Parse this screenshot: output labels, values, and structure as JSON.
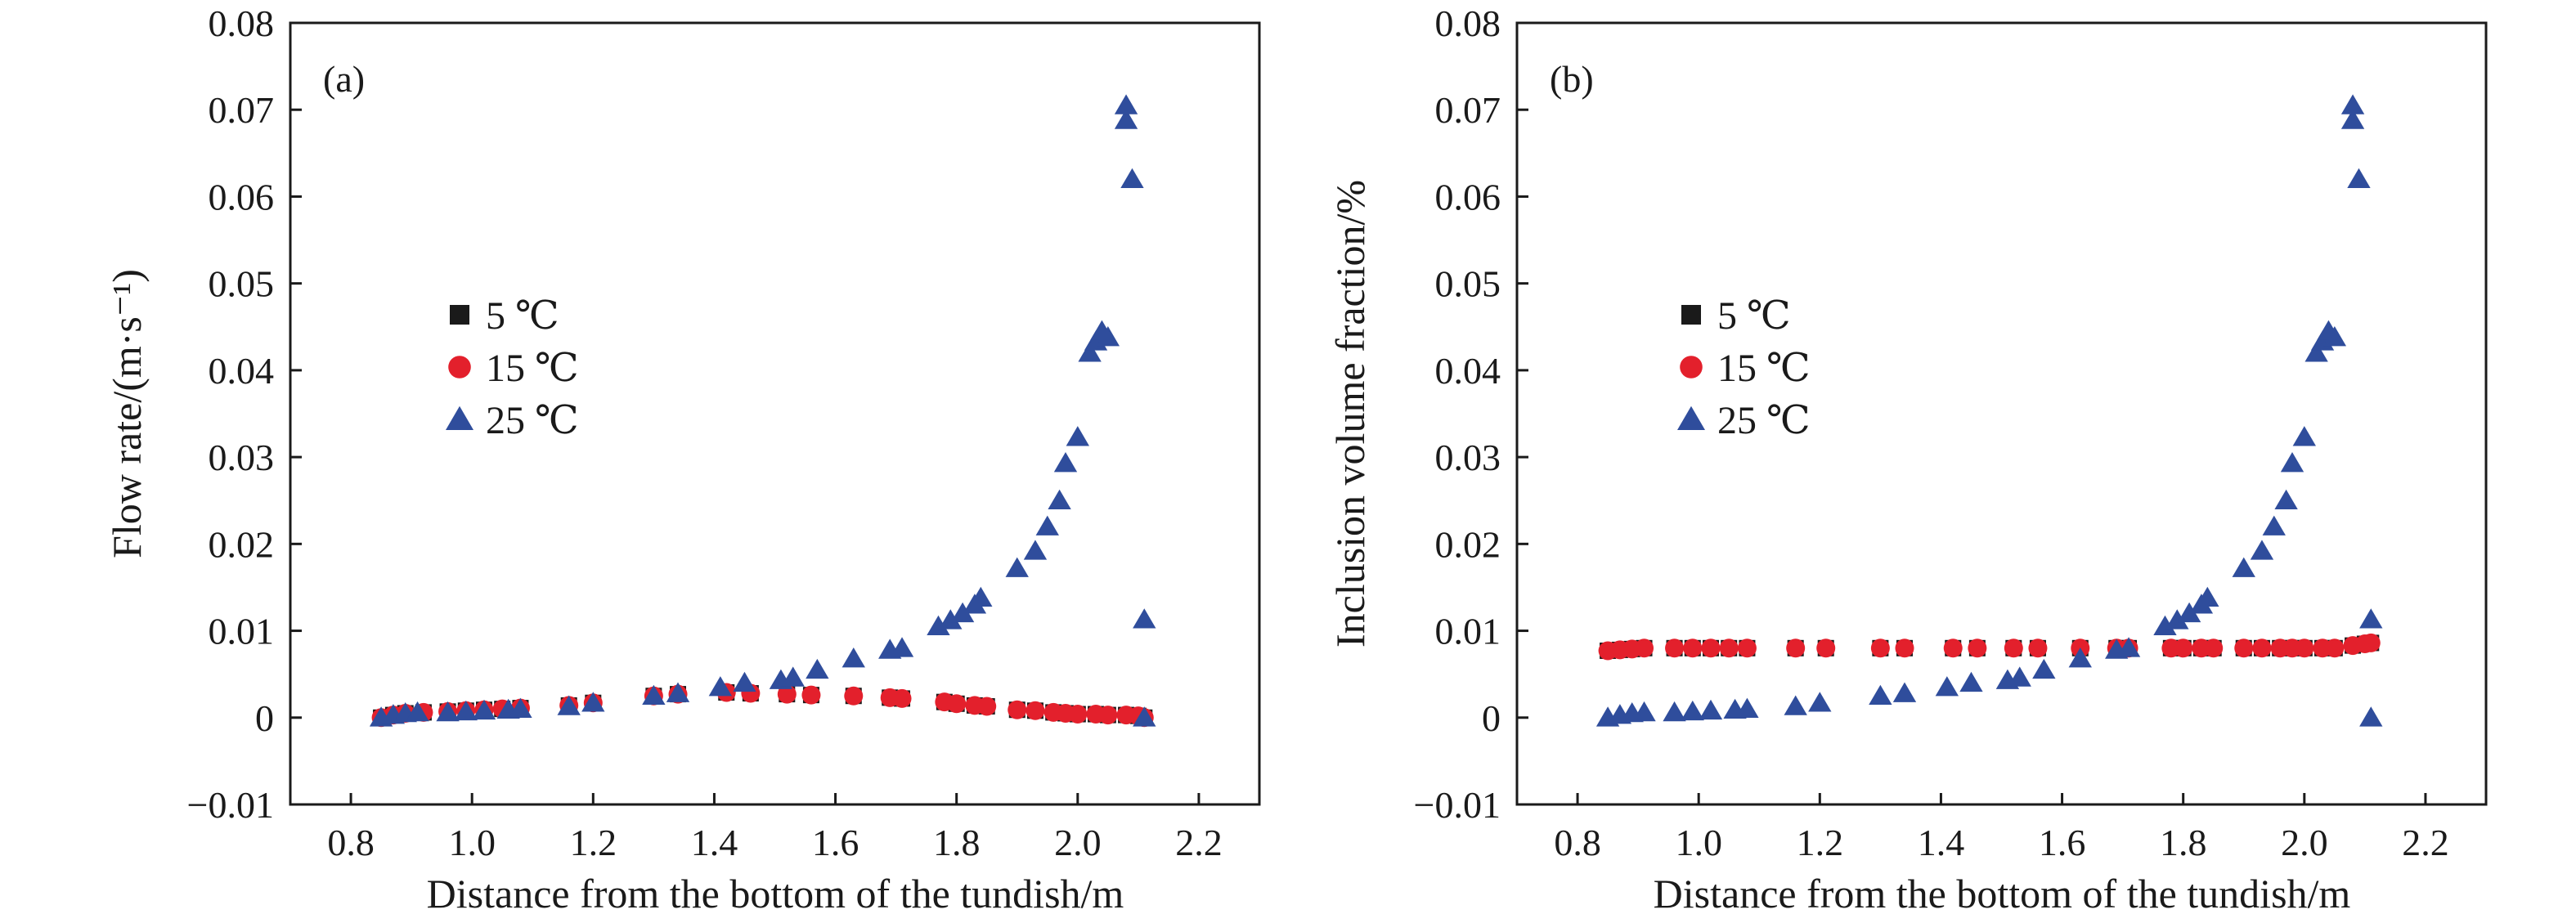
{
  "chart_data": [
    {
      "type": "scatter",
      "panel_label": "(a)",
      "xlabel": "Distance from the bottom of the tundish/m",
      "ylabel": "Flow rate/(m·s⁻¹)",
      "xlim": [
        0.7,
        2.3
      ],
      "ylim": [
        -0.01,
        0.08
      ],
      "x_ticks": [
        "0.8",
        "1.0",
        "1.2",
        "1.4",
        "1.6",
        "1.8",
        "2.0",
        "2.2"
      ],
      "y_ticks": [
        "−0.01",
        "0",
        "0.01",
        "0.02",
        "0.03",
        "0.04",
        "0.05",
        "0.06",
        "0.07",
        "0.08"
      ],
      "legend_position": "center-left",
      "series": [
        {
          "name": "5 ℃",
          "marker": "square",
          "color": "#1a1a1a",
          "x": [
            0.85,
            0.87,
            0.89,
            0.92,
            0.96,
            0.99,
            1.02,
            1.05,
            1.08,
            1.16,
            1.2,
            1.3,
            1.34,
            1.42,
            1.46,
            1.52,
            1.56,
            1.63,
            1.69,
            1.71,
            1.78,
            1.8,
            1.83,
            1.85,
            1.9,
            1.93,
            1.96,
            1.98,
            2.0,
            2.03,
            2.05,
            2.08,
            2.1,
            2.11
          ],
          "y": [
            0.0,
            0.0003,
            0.0005,
            0.0006,
            0.0007,
            0.0008,
            0.0009,
            0.001,
            0.0011,
            0.0014,
            0.0017,
            0.0025,
            0.0027,
            0.0029,
            0.0028,
            0.0027,
            0.0026,
            0.0025,
            0.0023,
            0.0022,
            0.0018,
            0.0016,
            0.0014,
            0.0013,
            0.0009,
            0.0008,
            0.0006,
            0.0005,
            0.0004,
            0.0004,
            0.0003,
            0.0003,
            0.0002,
            0.0
          ]
        },
        {
          "name": "15 ℃",
          "marker": "circle",
          "color": "#e3202c",
          "x": [
            0.85,
            0.87,
            0.89,
            0.92,
            0.96,
            0.99,
            1.02,
            1.05,
            1.08,
            1.16,
            1.2,
            1.3,
            1.34,
            1.42,
            1.46,
            1.52,
            1.56,
            1.63,
            1.69,
            1.71,
            1.78,
            1.8,
            1.83,
            1.85,
            1.9,
            1.93,
            1.96,
            1.98,
            2.0,
            2.03,
            2.05,
            2.08,
            2.1,
            2.11
          ],
          "y": [
            0.0,
            0.0003,
            0.0005,
            0.0006,
            0.0007,
            0.0008,
            0.0009,
            0.001,
            0.0011,
            0.0014,
            0.0017,
            0.0025,
            0.0027,
            0.0029,
            0.0028,
            0.0027,
            0.0026,
            0.0025,
            0.0023,
            0.0022,
            0.0018,
            0.0016,
            0.0014,
            0.0013,
            0.0009,
            0.0008,
            0.0006,
            0.0005,
            0.0004,
            0.0004,
            0.0003,
            0.0003,
            0.0002,
            0.0
          ]
        },
        {
          "name": "25 ℃",
          "marker": "triangle",
          "color": "#2f4d9c",
          "x": [
            0.85,
            0.87,
            0.89,
            0.91,
            0.96,
            0.99,
            1.02,
            1.06,
            1.08,
            1.16,
            1.2,
            1.3,
            1.34,
            1.41,
            1.45,
            1.51,
            1.53,
            1.57,
            1.63,
            1.69,
            1.71,
            1.77,
            1.79,
            1.81,
            1.83,
            1.84,
            1.9,
            1.93,
            1.95,
            1.97,
            1.98,
            2.0,
            2.02,
            2.03,
            2.04,
            2.05,
            2.08,
            2.08,
            2.09,
            2.11,
            2.11
          ],
          "y": [
            0.0,
            0.0003,
            0.0005,
            0.0006,
            0.0006,
            0.0007,
            0.0008,
            0.0009,
            0.001,
            0.0013,
            0.0017,
            0.0025,
            0.0028,
            0.0035,
            0.004,
            0.0043,
            0.0046,
            0.0055,
            0.0068,
            0.0078,
            0.008,
            0.0105,
            0.0112,
            0.012,
            0.013,
            0.0138,
            0.0172,
            0.0192,
            0.022,
            0.025,
            0.0293,
            0.0323,
            0.042,
            0.0433,
            0.0445,
            0.0438,
            0.0688,
            0.0705,
            0.062,
            0.0113,
            0.0
          ]
        }
      ]
    },
    {
      "type": "scatter",
      "panel_label": "(b)",
      "xlabel": "Distance from the bottom of the tundish/m",
      "ylabel": "Inclusion volume fraction/%",
      "xlim": [
        0.7,
        2.3
      ],
      "ylim": [
        -0.01,
        0.08
      ],
      "x_ticks": [
        "0.8",
        "1.0",
        "1.2",
        "1.4",
        "1.6",
        "1.8",
        "2.0",
        "2.2"
      ],
      "y_ticks": [
        "−0.01",
        "0",
        "0.01",
        "0.02",
        "0.03",
        "0.04",
        "0.05",
        "0.06",
        "0.07",
        "0.08"
      ],
      "legend_position": "center-left",
      "series": [
        {
          "name": "5 ℃",
          "marker": "square",
          "color": "#1a1a1a",
          "x": [
            0.85,
            0.87,
            0.89,
            0.91,
            0.96,
            0.99,
            1.02,
            1.05,
            1.08,
            1.16,
            1.21,
            1.3,
            1.34,
            1.42,
            1.46,
            1.52,
            1.56,
            1.63,
            1.69,
            1.71,
            1.78,
            1.8,
            1.83,
            1.85,
            1.9,
            1.93,
            1.96,
            1.98,
            2.0,
            2.03,
            2.05,
            2.08,
            2.1,
            2.11
          ],
          "y": [
            0.0077,
            0.0078,
            0.0079,
            0.008,
            0.008,
            0.008,
            0.008,
            0.008,
            0.008,
            0.008,
            0.008,
            0.008,
            0.008,
            0.008,
            0.008,
            0.008,
            0.008,
            0.008,
            0.008,
            0.008,
            0.008,
            0.008,
            0.008,
            0.008,
            0.008,
            0.008,
            0.008,
            0.008,
            0.008,
            0.008,
            0.008,
            0.0083,
            0.0085,
            0.0086
          ]
        },
        {
          "name": "15 ℃",
          "marker": "circle",
          "color": "#e3202c",
          "x": [
            0.85,
            0.87,
            0.89,
            0.91,
            0.96,
            0.99,
            1.02,
            1.05,
            1.08,
            1.16,
            1.21,
            1.3,
            1.34,
            1.42,
            1.46,
            1.52,
            1.56,
            1.63,
            1.69,
            1.71,
            1.78,
            1.8,
            1.83,
            1.85,
            1.9,
            1.93,
            1.96,
            1.98,
            2.0,
            2.03,
            2.05,
            2.08,
            2.1,
            2.11
          ],
          "y": [
            0.0077,
            0.0078,
            0.0079,
            0.008,
            0.008,
            0.008,
            0.008,
            0.008,
            0.008,
            0.008,
            0.008,
            0.008,
            0.008,
            0.008,
            0.008,
            0.008,
            0.008,
            0.008,
            0.008,
            0.008,
            0.008,
            0.008,
            0.008,
            0.008,
            0.008,
            0.008,
            0.008,
            0.008,
            0.008,
            0.008,
            0.008,
            0.0083,
            0.0085,
            0.0086
          ]
        },
        {
          "name": "25 ℃",
          "marker": "triangle",
          "color": "#2f4d9c",
          "x": [
            0.85,
            0.87,
            0.89,
            0.91,
            0.96,
            0.99,
            1.02,
            1.06,
            1.08,
            1.16,
            1.2,
            1.3,
            1.34,
            1.41,
            1.45,
            1.51,
            1.53,
            1.57,
            1.63,
            1.69,
            1.71,
            1.77,
            1.79,
            1.81,
            1.83,
            1.84,
            1.9,
            1.93,
            1.95,
            1.97,
            1.98,
            2.0,
            2.02,
            2.03,
            2.04,
            2.05,
            2.08,
            2.08,
            2.09,
            2.11,
            2.11
          ],
          "y": [
            0.0,
            0.0003,
            0.0005,
            0.0006,
            0.0006,
            0.0007,
            0.0008,
            0.0009,
            0.001,
            0.0013,
            0.0017,
            0.0025,
            0.0028,
            0.0035,
            0.004,
            0.0043,
            0.0046,
            0.0055,
            0.0068,
            0.0078,
            0.008,
            0.0105,
            0.0112,
            0.012,
            0.013,
            0.0138,
            0.0172,
            0.0192,
            0.022,
            0.025,
            0.0293,
            0.0323,
            0.042,
            0.0433,
            0.0445,
            0.0438,
            0.0688,
            0.0705,
            0.062,
            0.0113,
            0.0
          ]
        }
      ]
    }
  ]
}
